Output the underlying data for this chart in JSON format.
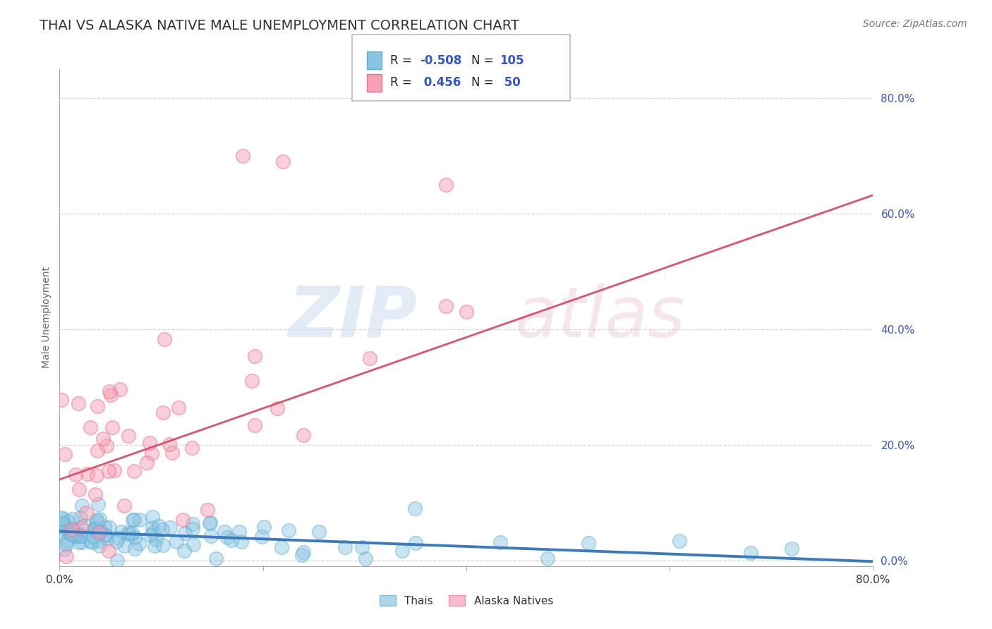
{
  "title": "THAI VS ALASKA NATIVE MALE UNEMPLOYMENT CORRELATION CHART",
  "source": "Source: ZipAtlas.com",
  "ylabel": "Male Unemployment",
  "yticks": [
    "0.0%",
    "20.0%",
    "40.0%",
    "60.0%",
    "80.0%"
  ],
  "ytick_vals": [
    0.0,
    0.2,
    0.4,
    0.6,
    0.8
  ],
  "xlim": [
    0.0,
    0.8
  ],
  "ylim": [
    -0.01,
    0.85
  ],
  "thai_color": "#89c4e1",
  "alaska_color": "#f4a0b5",
  "thai_edge_color": "#5aacd4",
  "alaska_edge_color": "#ee7090",
  "thai_line_color": "#3a7abf",
  "alaska_line_color": "#e05070",
  "thai_R": -0.508,
  "thai_N": 105,
  "alaska_R": 0.456,
  "alaska_N": 50,
  "thai_seed": 42,
  "alaska_seed": 7,
  "background_color": "#ffffff",
  "grid_color": "#cccccc",
  "title_color": "#333333",
  "source_color": "#777777",
  "legend_num_color": "#3355cc",
  "title_fontsize": 14,
  "axis_label_fontsize": 10,
  "tick_fontsize": 11,
  "source_fontsize": 10,
  "thai_intercept": 0.05,
  "thai_slope": -0.065,
  "alaska_intercept": 0.14,
  "alaska_slope": 0.615
}
